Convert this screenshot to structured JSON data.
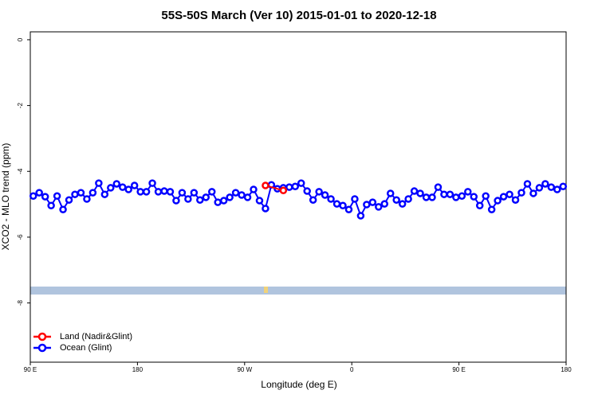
{
  "chart_data": {
    "type": "line",
    "title": "55S-50S March (Ver 10)   2015-01-01 to 2020-12-18",
    "x_label": "Longitude (deg E)",
    "y_label": "XCO2 - MLO trend (ppm)",
    "xlim": [
      90,
      540
    ],
    "ylim": [
      -9.8,
      0.24
    ],
    "xticks": [
      {
        "value": 90,
        "label": "90 E"
      },
      180,
      {
        "value": 270,
        "label": "90 W"
      },
      {
        "value": 360,
        "label": "0"
      },
      {
        "value": 450,
        "label": "90 E"
      },
      {
        "value": 540,
        "label": "180"
      }
    ],
    "yticks": [
      0,
      -2,
      -4,
      -6,
      -8
    ],
    "legend": "bottom-left",
    "series": [
      {
        "name": "Land (Nadir&Glint)",
        "color": "#ff0000",
        "x": [
          287.5,
          302.5
        ],
        "values": [
          -4.43,
          -4.58
        ]
      },
      {
        "name": "Ocean (Glint)",
        "color": "#0000ff",
        "x": [
          92.5,
          97.5,
          102.5,
          107.5,
          112.5,
          117.5,
          122.5,
          127.5,
          132.5,
          137.5,
          142.5,
          147.5,
          152.5,
          157.5,
          162.5,
          167.5,
          172.5,
          177.5,
          182.5,
          187.5,
          192.5,
          197.5,
          202.5,
          207.5,
          212.5,
          217.5,
          222.5,
          227.5,
          232.5,
          237.5,
          242.5,
          247.5,
          252.5,
          257.5,
          262.5,
          267.5,
          272.5,
          277.5,
          282.5,
          287.5,
          292.5,
          297.5,
          302.5,
          307.5,
          312.5,
          317.5,
          322.5,
          327.5,
          332.5,
          337.5,
          342.5,
          347.5,
          352.5,
          357.5,
          362.5,
          367.5,
          372.5,
          377.5,
          382.5,
          387.5,
          392.5,
          397.5,
          402.5,
          407.5,
          412.5,
          417.5,
          422.5,
          427.5,
          432.5,
          437.5,
          442.5,
          447.5,
          452.5,
          457.5,
          462.5,
          467.5,
          472.5,
          477.5,
          482.5,
          487.5,
          492.5,
          497.5,
          502.5,
          507.5,
          512.5,
          517.5,
          522.5,
          527.5,
          532.5,
          537.5
        ],
        "values": [
          -4.75,
          -4.65,
          -4.77,
          -5.04,
          -4.75,
          -5.16,
          -4.87,
          -4.7,
          -4.65,
          -4.84,
          -4.65,
          -4.36,
          -4.7,
          -4.5,
          -4.38,
          -4.48,
          -4.55,
          -4.43,
          -4.62,
          -4.62,
          -4.36,
          -4.62,
          -4.6,
          -4.62,
          -4.89,
          -4.65,
          -4.84,
          -4.65,
          -4.87,
          -4.79,
          -4.62,
          -4.94,
          -4.89,
          -4.79,
          -4.65,
          -4.72,
          -4.79,
          -4.55,
          -4.89,
          -5.13,
          -4.41,
          -4.53,
          -4.5,
          -4.48,
          -4.46,
          -4.36,
          -4.6,
          -4.87,
          -4.62,
          -4.72,
          -4.84,
          -4.99,
          -5.04,
          -5.16,
          -4.84,
          -5.35,
          -5.01,
          -4.94,
          -5.08,
          -4.99,
          -4.67,
          -4.87,
          -4.99,
          -4.84,
          -4.6,
          -4.67,
          -4.79,
          -4.79,
          -4.48,
          -4.7,
          -4.7,
          -4.79,
          -4.75,
          -4.62,
          -4.77,
          -5.04,
          -4.75,
          -5.16,
          -4.89,
          -4.77,
          -4.7,
          -4.87,
          -4.65,
          -4.38,
          -4.67,
          -4.5,
          -4.38,
          -4.48,
          -4.55,
          -4.46
        ]
      }
    ]
  }
}
